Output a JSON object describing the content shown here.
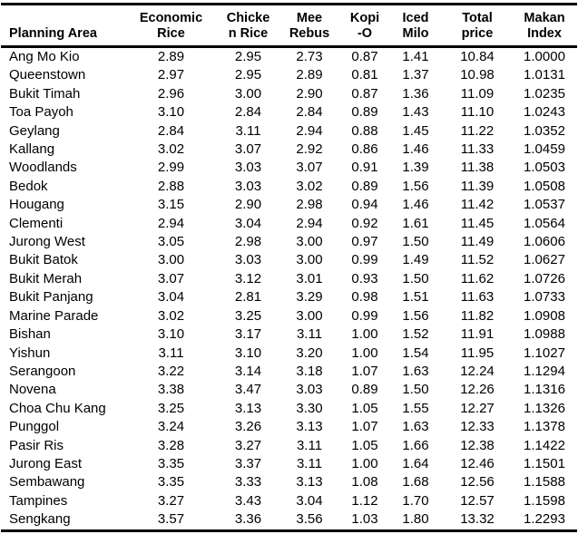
{
  "colors": {
    "background": "#ffffff",
    "text": "#000000",
    "rule": "#000000"
  },
  "chart_data": {
    "type": "table",
    "title": "",
    "columns": [
      "Planning Area",
      "Economic\nRice",
      "Chicke\nn Rice",
      "Mee\nRebus",
      "Kopi\n-O",
      "Iced\nMilo",
      "Total\nprice",
      "Makan\nIndex"
    ],
    "column_keys": [
      "planning-area",
      "economic-rice",
      "chicken-rice",
      "mee-rebus",
      "kopi-o",
      "iced-milo",
      "total-price",
      "makan-index"
    ],
    "rows": [
      [
        "Ang Mo Kio",
        "2.89",
        "2.95",
        "2.73",
        "0.87",
        "1.41",
        "10.84",
        "1.0000"
      ],
      [
        "Queenstown",
        "2.97",
        "2.95",
        "2.89",
        "0.81",
        "1.37",
        "10.98",
        "1.0131"
      ],
      [
        "Bukit Timah",
        "2.96",
        "3.00",
        "2.90",
        "0.87",
        "1.36",
        "11.09",
        "1.0235"
      ],
      [
        "Toa Payoh",
        "3.10",
        "2.84",
        "2.84",
        "0.89",
        "1.43",
        "11.10",
        "1.0243"
      ],
      [
        "Geylang",
        "2.84",
        "3.11",
        "2.94",
        "0.88",
        "1.45",
        "11.22",
        "1.0352"
      ],
      [
        "Kallang",
        "3.02",
        "3.07",
        "2.92",
        "0.86",
        "1.46",
        "11.33",
        "1.0459"
      ],
      [
        "Woodlands",
        "2.99",
        "3.03",
        "3.07",
        "0.91",
        "1.39",
        "11.38",
        "1.0503"
      ],
      [
        "Bedok",
        "2.88",
        "3.03",
        "3.02",
        "0.89",
        "1.56",
        "11.39",
        "1.0508"
      ],
      [
        "Hougang",
        "3.15",
        "2.90",
        "2.98",
        "0.94",
        "1.46",
        "11.42",
        "1.0537"
      ],
      [
        "Clementi",
        "2.94",
        "3.04",
        "2.94",
        "0.92",
        "1.61",
        "11.45",
        "1.0564"
      ],
      [
        "Jurong West",
        "3.05",
        "2.98",
        "3.00",
        "0.97",
        "1.50",
        "11.49",
        "1.0606"
      ],
      [
        "Bukit Batok",
        "3.00",
        "3.03",
        "3.00",
        "0.99",
        "1.49",
        "11.52",
        "1.0627"
      ],
      [
        "Bukit Merah",
        "3.07",
        "3.12",
        "3.01",
        "0.93",
        "1.50",
        "11.62",
        "1.0726"
      ],
      [
        "Bukit Panjang",
        "3.04",
        "2.81",
        "3.29",
        "0.98",
        "1.51",
        "11.63",
        "1.0733"
      ],
      [
        "Marine Parade",
        "3.02",
        "3.25",
        "3.00",
        "0.99",
        "1.56",
        "11.82",
        "1.0908"
      ],
      [
        "Bishan",
        "3.10",
        "3.17",
        "3.11",
        "1.00",
        "1.52",
        "11.91",
        "1.0988"
      ],
      [
        "Yishun",
        "3.11",
        "3.10",
        "3.20",
        "1.00",
        "1.54",
        "11.95",
        "1.1027"
      ],
      [
        "Serangoon",
        "3.22",
        "3.14",
        "3.18",
        "1.07",
        "1.63",
        "12.24",
        "1.1294"
      ],
      [
        "Novena",
        "3.38",
        "3.47",
        "3.03",
        "0.89",
        "1.50",
        "12.26",
        "1.1316"
      ],
      [
        "Choa Chu Kang",
        "3.25",
        "3.13",
        "3.30",
        "1.05",
        "1.55",
        "12.27",
        "1.1326"
      ],
      [
        "Punggol",
        "3.24",
        "3.26",
        "3.13",
        "1.07",
        "1.63",
        "12.33",
        "1.1378"
      ],
      [
        "Pasir Ris",
        "3.28",
        "3.27",
        "3.11",
        "1.05",
        "1.66",
        "12.38",
        "1.1422"
      ],
      [
        "Jurong East",
        "3.35",
        "3.37",
        "3.11",
        "1.00",
        "1.64",
        "12.46",
        "1.1501"
      ],
      [
        "Sembawang",
        "3.35",
        "3.33",
        "3.13",
        "1.08",
        "1.68",
        "12.56",
        "1.1588"
      ],
      [
        "Tampines",
        "3.27",
        "3.43",
        "3.04",
        "1.12",
        "1.70",
        "12.57",
        "1.1598"
      ],
      [
        "Sengkang",
        "3.57",
        "3.36",
        "3.56",
        "1.03",
        "1.80",
        "13.32",
        "1.2293"
      ]
    ]
  }
}
